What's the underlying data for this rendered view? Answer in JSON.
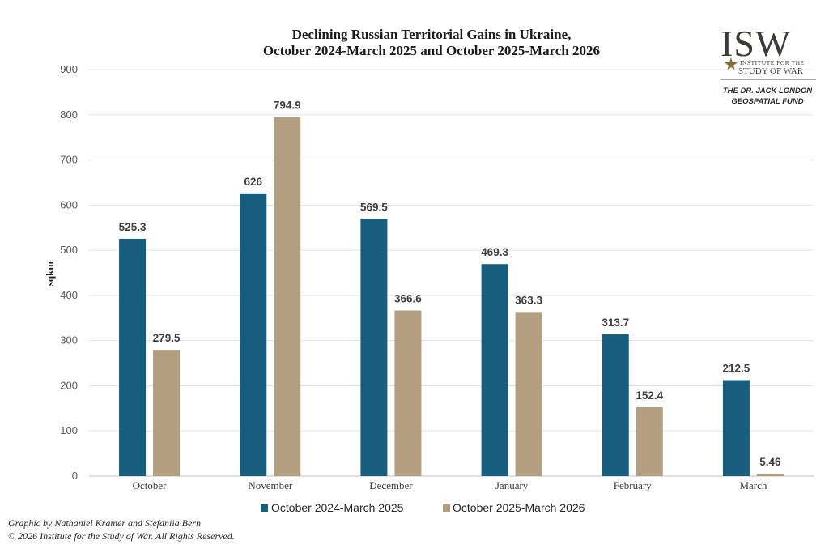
{
  "chart_data": {
    "type": "bar",
    "title_lines": [
      "Declining Russian Territorial Gains in Ukraine,",
      "October 2024-March 2025 and October 2025-March 2026"
    ],
    "ylabel": "sqkm",
    "ylim": [
      0,
      900
    ],
    "yticks": [
      "0",
      "100",
      "200",
      "300",
      "400",
      "500",
      "600",
      "700",
      "800",
      "900"
    ],
    "categories": [
      "October",
      "November",
      "December",
      "January",
      "February",
      "March"
    ],
    "series": [
      {
        "name": "October 2024-March 2025",
        "color": "#175d7e",
        "values": [
          525.3,
          626,
          569.5,
          469.3,
          313.7,
          212.5
        ],
        "labels": [
          "525.3",
          "626",
          "569.5",
          "469.3",
          "313.7",
          "212.5"
        ]
      },
      {
        "name": "October 2025-March 2026",
        "color": "#b29f7f",
        "values": [
          279.5,
          794.9,
          366.6,
          363.3,
          152.4,
          5.46
        ],
        "labels": [
          "279.5",
          "794.9",
          "366.6",
          "363.3",
          "152.4",
          "5.46"
        ]
      }
    ],
    "grid": true,
    "legend": "bottom-center"
  },
  "credits": [
    "Graphic by Nathaniel Kramer and Stefaniia Bern",
    "© 2026 Institute for the Study of War. All Rights Reserved."
  ],
  "logo": {
    "acronym": "ISW",
    "line1": "INSTITUTE FOR THE",
    "line2": "STUDY OF WAR",
    "fund1": "THE DR. JACK LONDON",
    "fund2": "GEOSPATIAL FUND"
  }
}
